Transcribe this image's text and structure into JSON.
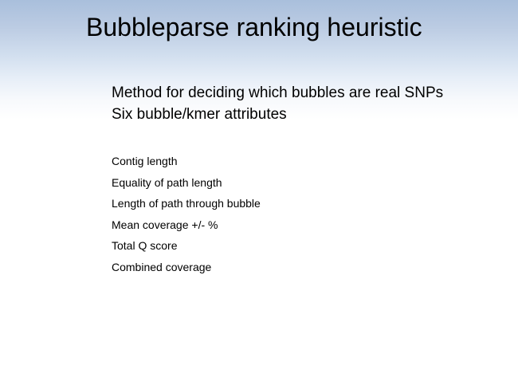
{
  "slide": {
    "title": "Bubbleparse ranking heuristic",
    "main_points": [
      "Method for deciding which bubbles are real SNPs",
      "Six bubble/kmer attributes"
    ],
    "attributes": [
      "Contig length",
      "Equality of path length",
      "Length of path through bubble",
      "Mean coverage +/- %",
      "Total Q score",
      "Combined coverage"
    ]
  },
  "colors": {
    "header_gradient_top": "#a9bfdc",
    "background": "#ffffff",
    "text": "#000000"
  }
}
